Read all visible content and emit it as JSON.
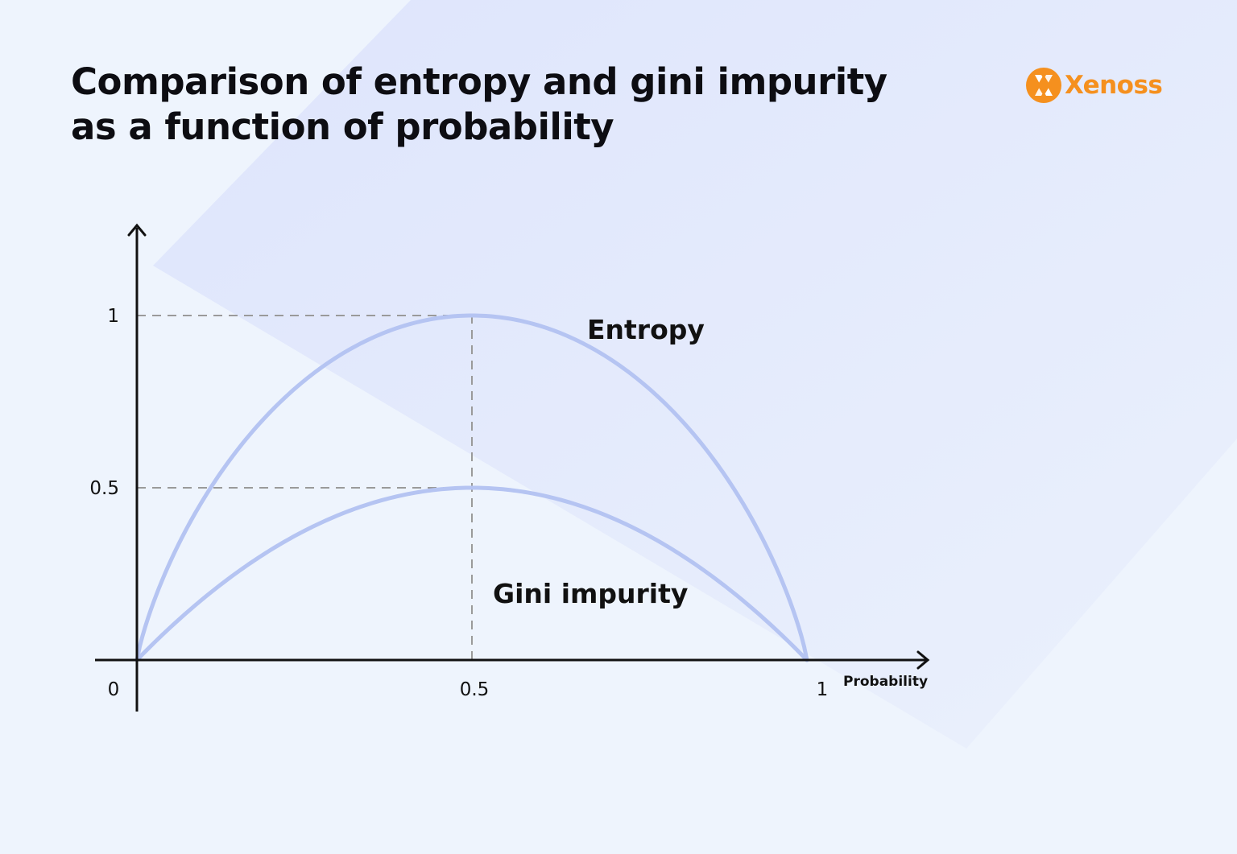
{
  "title_lines": [
    "Comparison of entropy and gini impurity",
    "as a function of probability"
  ],
  "logo": {
    "text": "Xenoss",
    "icon": "xenoss-logo-icon",
    "color": "#f5901e"
  },
  "colors": {
    "curve": "#b5c4f2",
    "axis": "#111111",
    "guide": "#9a9a9a",
    "text": "#111111"
  },
  "chart_data": {
    "type": "line",
    "xlabel": "Probability",
    "ylabel": "",
    "xlim": [
      0,
      1
    ],
    "ylim": [
      0,
      1
    ],
    "x_ticks": [
      {
        "value": 0,
        "label": "0"
      },
      {
        "value": 0.5,
        "label": "0.5"
      },
      {
        "value": 1,
        "label": "1"
      }
    ],
    "y_ticks": [
      {
        "value": 0.5,
        "label": "0.5"
      },
      {
        "value": 1,
        "label": "1"
      }
    ],
    "series": [
      {
        "name": "Entropy",
        "formula": "-p*log2(p)-(1-p)*log2(1-p)",
        "peak": {
          "x": 0.5,
          "y": 1
        }
      },
      {
        "name": "Gini impurity",
        "formula": "2*p*(1-p)",
        "peak": {
          "x": 0.5,
          "y": 0.5
        }
      }
    ],
    "guides": [
      {
        "from": [
          0,
          1
        ],
        "to": [
          0.5,
          1
        ]
      },
      {
        "from": [
          0,
          0.5
        ],
        "to": [
          0.5,
          0.5
        ]
      },
      {
        "from": [
          0.5,
          0
        ],
        "to": [
          0.5,
          1
        ]
      }
    ],
    "grid": false,
    "legend": "inline labels"
  }
}
